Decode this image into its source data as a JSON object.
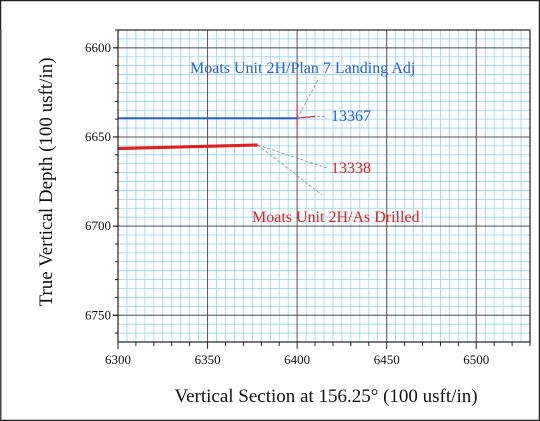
{
  "chart_data": {
    "type": "line",
    "title": "",
    "xlabel": "Vertical Section at 156.25° (100 usft/in)",
    "ylabel": "True Vertical Depth (100 usft/in)",
    "xlim": [
      6300,
      6530
    ],
    "ylim": [
      6590,
      6765
    ],
    "y_inverted": true,
    "x_ticks": [
      6300,
      6350,
      6400,
      6450,
      6500
    ],
    "y_ticks": [
      6600,
      6650,
      6700,
      6750
    ],
    "grid": true,
    "series": [
      {
        "name": "Moats Unit 2H/Plan 7 Landing Adj",
        "color": "#2a5fd6",
        "x": [
          6300,
          6400
        ],
        "y": [
          6639.5,
          6639.5
        ]
      },
      {
        "name": "Moats Unit 2H/As Drilled",
        "color": "#e02020",
        "x": [
          6300,
          6378
        ],
        "y": [
          6656.5,
          6654.5
        ]
      }
    ],
    "annotations": [
      {
        "text": "Moats Unit 2H/Plan 7 Landing Adj",
        "color": "#2a5fd6"
      },
      {
        "text": "13367",
        "color": "#2a5fd6"
      },
      {
        "text": "13338",
        "color": "#e02020"
      },
      {
        "text": "Moats Unit 2H/As Drilled",
        "color": "#e02020"
      }
    ]
  }
}
